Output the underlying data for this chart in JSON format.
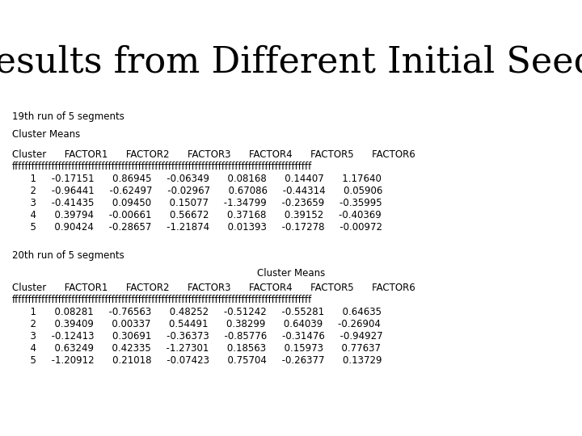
{
  "title": "Results from Different Initial Seeds",
  "title_fontsize": 32,
  "title_font": "serif",
  "mono_font": "Courier New",
  "section1_label": "19th run of 5 segments",
  "section1_subtitle": "Cluster Means",
  "section2_label": "20th run of 5 segments",
  "section2_subtitle": "Cluster Means",
  "table1_lines": [
    "Cluster      FACTOR1      FACTOR2      FACTOR3      FACTOR4      FACTOR5      FACTOR6",
    "ffffffffffffffffffffffffffffffffffffffffffffffffffffffffffffffffffffffffffffffffffffffffff",
    "      1     -0.17151      0.86945     -0.06349      0.08168      0.14407      1.17640",
    "      2     -0.96441     -0.62497     -0.02967      0.67086     -0.44314      0.05906",
    "      3     -0.41435      0.09450      0.15077     -1.34799     -0.23659     -0.35995",
    "      4      0.39794     -0.00661      0.56672      0.37168      0.39152     -0.40369",
    "      5      0.90424     -0.28657     -1.21874      0.01393     -0.17278     -0.00972"
  ],
  "table2_lines": [
    "Cluster      FACTOR1      FACTOR2      FACTOR3      FACTOR4      FACTOR5      FACTOR6",
    "ffffffffffffffffffffffffffffffffffffffffffffffffffffffffffffffffffffffffffffffffffffffffff",
    "      1      0.08281     -0.76563      0.48252     -0.51242     -0.55281      0.64635",
    "      2      0.39409      0.00337      0.54491      0.38299      0.64039     -0.26904",
    "      3     -0.12413      0.30691     -0.36373     -0.85776     -0.31476     -0.94927",
    "      4      0.63249      0.42335     -1.27301      0.18563      0.15973      0.77637",
    "      5     -1.20912      0.21018     -0.07423      0.75704     -0.26377      0.13729"
  ],
  "background_color": "#ffffff",
  "text_color": "#000000",
  "mono_fontsize": 8.5
}
